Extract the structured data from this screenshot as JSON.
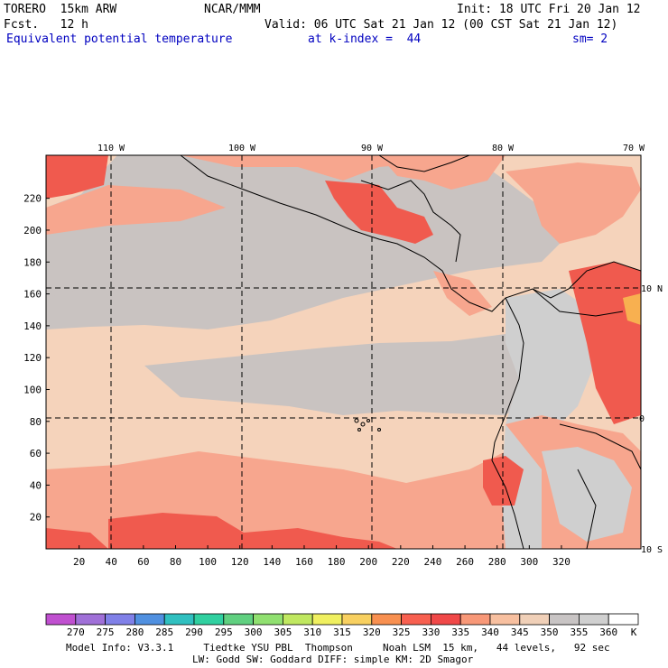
{
  "header": {
    "model": "TORERO  15km ARW",
    "center": "NCAR/MMM",
    "init": "Init: 18 UTC Fri 20 Jan 12",
    "fcst": "Fcst.   12 h",
    "valid": "Valid: 06 UTC Sat 21 Jan 12 (00 CST Sat 21 Jan 12)",
    "field": "Equivalent potential temperature",
    "level": "at k-index =  44",
    "smooth": "sm= 2"
  },
  "map": {
    "lon_labels": [
      "110 W",
      "100 W",
      "90 W",
      "80 W",
      "70 W"
    ],
    "lat_labels_right": [
      "10 N",
      "0",
      "10 S"
    ],
    "y_ticks": [
      "20",
      "40",
      "60",
      "80",
      "100",
      "120",
      "140",
      "160",
      "180",
      "200",
      "220"
    ],
    "x_ticks": [
      "20",
      "40",
      "60",
      "80",
      "100",
      "120",
      "140",
      "160",
      "180",
      "200",
      "220",
      "240",
      "260",
      "280",
      "300",
      "320"
    ]
  },
  "colorbar": {
    "labels": [
      "270",
      "275",
      "280",
      "285",
      "290",
      "295",
      "300",
      "305",
      "310",
      "315",
      "320",
      "325",
      "330",
      "335",
      "340",
      "345",
      "350",
      "355",
      "360"
    ],
    "unit": "K",
    "colors": [
      "#c050d0",
      "#a070d8",
      "#8080e8",
      "#5090e0",
      "#30c0c0",
      "#30d0a0",
      "#60d080",
      "#90e070",
      "#c0e860",
      "#f0f060",
      "#f8d060",
      "#f89050",
      "#f86050",
      "#f04848",
      "#f89878",
      "#f8c0a0",
      "#f0d0b8",
      "#c8c4c4",
      "#d0d0d0",
      "#ffffff"
    ]
  },
  "footer": {
    "line1": "Model Info: V3.3.1     Tiedtke YSU PBL  Thompson     Noah LSM  15 km,   44 levels,   92 sec",
    "line2": "LW: Godd SW: Goddard DIFF: simple KM: 2D Smagor"
  },
  "field_colors": {
    "background": "#f5d3bb",
    "gray": "#c9c3c1",
    "salmon": "#f7a68e",
    "red": "#f05a4e",
    "orange_hot": "#f8b050",
    "land_gray": "#cfcfcf"
  }
}
